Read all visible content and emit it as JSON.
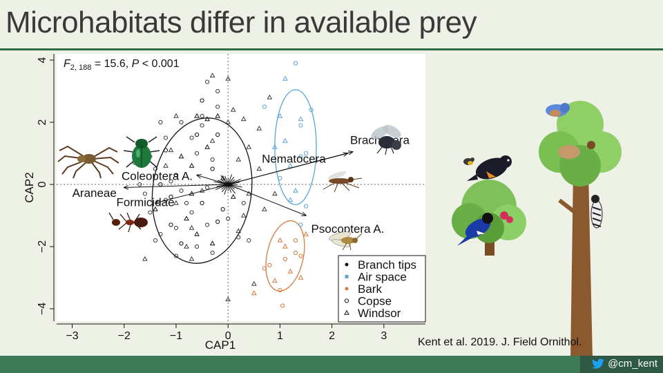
{
  "slide": {
    "title": "Microhabitats differ in available prey",
    "stat_prefix": "F",
    "stat_sub": "2, 188",
    "stat_eq": " = 15.6, ",
    "stat_p": "P",
    "stat_rest": " < 0.001",
    "citation": "Kent et al. 2019. J. Field Ornithol.",
    "handle": "@cm_kent",
    "handle_icon": "twitter-bird-icon"
  },
  "chart_data": {
    "type": "scatter",
    "xlabel": "CAP1",
    "ylabel": "CAP2",
    "xlim": [
      -3.3,
      3.8
    ],
    "ylim": [
      -4.4,
      4.2
    ],
    "xticks": [
      -3,
      -2,
      -1,
      0,
      1,
      2,
      3
    ],
    "yticks": [
      -4,
      -2,
      0,
      2,
      4
    ],
    "xtick_labels": [
      "−3",
      "−2",
      "−1",
      "0",
      "1",
      "2",
      "3"
    ],
    "ytick_labels": [
      "−4",
      "−2",
      "0",
      "2",
      "4"
    ],
    "grid": false,
    "reference_lines": {
      "x": 0,
      "y": 0,
      "style": "dotted"
    },
    "legend": {
      "placement": "bottom-right",
      "entries": [
        {
          "label": "Branch tips",
          "marker": "filled-circle",
          "color": "#111111"
        },
        {
          "label": "Air space",
          "marker": "filled-square",
          "color": "#5aa5d8"
        },
        {
          "label": "Bark",
          "marker": "filled-circle",
          "color": "#d9783a"
        },
        {
          "label": "Copse",
          "marker": "open-circle",
          "color": "#111111"
        },
        {
          "label": "Windsor",
          "marker": "open-triangle",
          "color": "#111111"
        }
      ]
    },
    "series": [
      {
        "name": "Branch tips",
        "color": "#111111",
        "points": [
          [
            -1.2,
            1.1
          ],
          [
            -0.9,
            0.9
          ],
          [
            -0.6,
            1.6
          ],
          [
            -0.4,
            1.2
          ],
          [
            -1.0,
            0.3
          ],
          [
            -0.7,
            -0.3
          ],
          [
            -0.3,
            0.5
          ],
          [
            -0.1,
            0.2
          ],
          [
            -0.5,
            -0.6
          ],
          [
            -0.8,
            -1.1
          ],
          [
            -0.2,
            -1.2
          ],
          [
            -0.6,
            -1.6
          ],
          [
            -0.9,
            -1.9
          ],
          [
            -0.3,
            -1.9
          ],
          [
            -1.1,
            -0.4
          ],
          [
            -0.4,
            2.1
          ],
          [
            -0.2,
            1.6
          ],
          [
            -1.4,
            -0.8
          ],
          [
            -0.1,
            -0.8
          ],
          [
            -0.7,
            0.6
          ],
          [
            -1.3,
            0.0
          ],
          [
            0.1,
            -0.4
          ],
          [
            -0.5,
            2.7
          ],
          [
            -0.2,
            2.2
          ],
          [
            -1.1,
            -1.3
          ],
          [
            -0.6,
            2.2
          ]
        ]
      },
      {
        "name": "Air space",
        "color": "#5aa5d8",
        "points": [
          [
            0.7,
            2.5
          ],
          [
            1.1,
            3.4
          ],
          [
            1.3,
            3.9
          ],
          [
            1.0,
            2.2
          ],
          [
            1.4,
            1.9
          ],
          [
            1.1,
            1.4
          ],
          [
            1.5,
            1.0
          ],
          [
            1.2,
            0.6
          ],
          [
            1.0,
            0.2
          ],
          [
            1.3,
            -0.2
          ],
          [
            1.6,
            2.4
          ],
          [
            0.9,
            1.2
          ],
          [
            1.4,
            0.9
          ],
          [
            1.2,
            -0.5
          ],
          [
            1.5,
            -0.7
          ],
          [
            1.4,
            2.1
          ],
          [
            1.4,
            -1.3
          ]
        ]
      },
      {
        "name": "Bark",
        "color": "#d9783a",
        "points": [
          [
            0.8,
            -2.6
          ],
          [
            1.0,
            -1.8
          ],
          [
            1.3,
            -2.2
          ],
          [
            1.2,
            -2.8
          ],
          [
            1.4,
            -2.3
          ],
          [
            1.5,
            -1.6
          ],
          [
            1.3,
            -1.8
          ],
          [
            0.9,
            -3.1
          ],
          [
            1.0,
            -3.4
          ],
          [
            0.5,
            -3.5
          ],
          [
            1.1,
            -2.4
          ],
          [
            1.4,
            -3.0
          ],
          [
            0.7,
            -2.7
          ],
          [
            1.1,
            -2.0
          ],
          [
            1.05,
            -3.9
          ]
        ]
      }
    ],
    "copse_points": [
      [
        -1.8,
        0.7
      ],
      [
        -1.4,
        0.5
      ],
      [
        -1.2,
        -0.5
      ],
      [
        -1.5,
        -0.9
      ],
      [
        -1.3,
        -1.6
      ],
      [
        -1.0,
        -1.4
      ],
      [
        -0.7,
        -0.9
      ],
      [
        -0.4,
        -0.1
      ],
      [
        -0.9,
        2.0
      ],
      [
        -0.5,
        2.2
      ],
      [
        -1.2,
        1.5
      ],
      [
        -1.3,
        2.0
      ],
      [
        -1.7,
        0.0
      ],
      [
        -0.3,
        -2.2
      ],
      [
        -0.6,
        -2.0
      ],
      [
        -0.2,
        2.5
      ],
      [
        -0.5,
        1.9
      ],
      [
        -0.8,
        -0.6
      ],
      [
        -1.0,
        -2.3
      ],
      [
        -0.4,
        -1.3
      ],
      [
        0.2,
        -1.7
      ],
      [
        -1.1,
        0.1
      ],
      [
        -0.6,
        1.0
      ],
      [
        -0.3,
        0.8
      ],
      [
        0.4,
        -1.8
      ],
      [
        -1.4,
        -1.8
      ],
      [
        0.0,
        -1.1
      ],
      [
        0.3,
        -0.6
      ],
      [
        -0.7,
        1.5
      ],
      [
        -1.5,
        0.9
      ],
      [
        -0.2,
        3.0
      ],
      [
        -0.4,
        3.3
      ],
      [
        -1.6,
        -0.3
      ],
      [
        -0.9,
        -0.2
      ]
    ],
    "windsor_points": [
      [
        -0.3,
        3.5
      ],
      [
        0.0,
        3.4
      ],
      [
        0.1,
        2.4
      ],
      [
        0.3,
        2.1
      ],
      [
        0.6,
        1.8
      ],
      [
        0.4,
        1.2
      ],
      [
        -1.1,
        1.1
      ],
      [
        -1.0,
        -0.6
      ],
      [
        -0.7,
        -1.4
      ],
      [
        0.2,
        0.8
      ],
      [
        0.6,
        0.5
      ],
      [
        0.4,
        -0.3
      ],
      [
        0.7,
        -0.8
      ],
      [
        0.9,
        -0.3
      ],
      [
        0.3,
        -1.0
      ],
      [
        -0.8,
        -2.0
      ],
      [
        -0.5,
        -0.2
      ],
      [
        -1.2,
        0.6
      ],
      [
        0.0,
        2.0
      ],
      [
        -0.3,
        1.4
      ],
      [
        0.8,
        2.8
      ],
      [
        0.2,
        -1.5
      ],
      [
        -1.6,
        -2.4
      ],
      [
        0.5,
        -3.2
      ],
      [
        0.0,
        -3.7
      ],
      [
        -0.7,
        -2.4
      ],
      [
        -1.0,
        2.2
      ]
    ],
    "ellipses": [
      {
        "group": "Copse",
        "center": [
          -0.5,
          -0.2
        ],
        "rx": 0.95,
        "ry": 2.35,
        "angle": 8,
        "color": "#111111"
      },
      {
        "group": "Air space",
        "center": [
          1.3,
          1.2
        ],
        "rx": 0.4,
        "ry": 1.85,
        "angle": 0,
        "color": "#5aa5d8"
      },
      {
        "group": "Bark",
        "center": [
          1.1,
          -2.3
        ],
        "rx": 0.35,
        "ry": 1.15,
        "angle": 12,
        "color": "#d9783a"
      }
    ],
    "vectors": [
      {
        "label": "Nematocera",
        "end": [
          2.3,
          1.0
        ],
        "label_pos": [
          0.65,
          0.7
        ]
      },
      {
        "label": "Brachycera",
        "end": [
          2.4,
          1.05
        ],
        "label_pos": [
          2.35,
          1.3
        ]
      },
      {
        "label": "Araneae",
        "end": [
          -2.0,
          -0.1
        ],
        "label_pos": [
          -3.0,
          -0.4
        ]
      },
      {
        "label": "Coleoptera A.",
        "end": [
          -0.6,
          0.3
        ],
        "label_pos": [
          -2.05,
          0.15
        ]
      },
      {
        "label": "Formicidae",
        "end": [
          -1.4,
          -0.6
        ],
        "label_pos": [
          -2.15,
          -0.7
        ]
      },
      {
        "label": "Psocoptera A.",
        "end": [
          1.5,
          -1.0
        ],
        "label_pos": [
          1.6,
          -1.55
        ]
      }
    ]
  },
  "insects": [
    {
      "name": "spider-image",
      "label": "Araneae"
    },
    {
      "name": "beetle-image",
      "label": "Coleoptera A."
    },
    {
      "name": "ant-image",
      "label": "Formicidae"
    },
    {
      "name": "fly-image",
      "label": "Brachycera"
    },
    {
      "name": "mosquito-image",
      "label": "Nematocera"
    },
    {
      "name": "booklouse-image",
      "label": "Psocoptera A."
    }
  ]
}
